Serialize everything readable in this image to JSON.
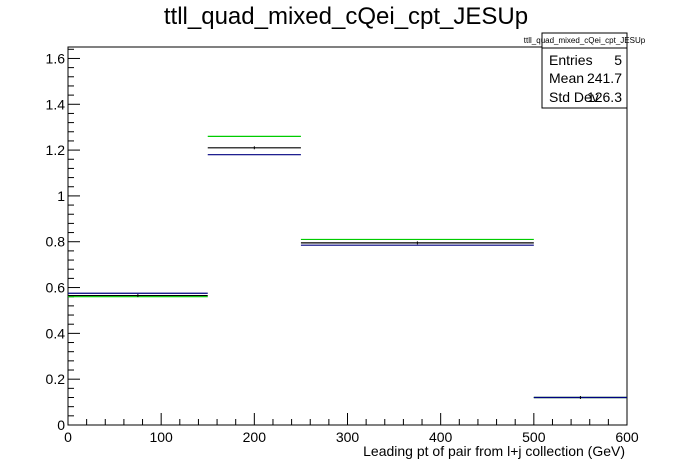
{
  "chart_data": {
    "type": "histogram",
    "title": "ttll_quad_mixed_cQei_cpt_JESUp",
    "xlabel": "Leading pt of pair from l+j collection (GeV)",
    "ylabel": "",
    "xlim": [
      0,
      600
    ],
    "ylim": [
      0,
      1.65
    ],
    "x_ticks": [
      "0",
      "100",
      "200",
      "300",
      "400",
      "500",
      "600"
    ],
    "y_ticks": [
      "0",
      "0.2",
      "0.4",
      "0.6",
      "0.8",
      "1",
      "1.2",
      "1.4",
      "1.6"
    ],
    "bin_edges": [
      0,
      150,
      250,
      500,
      600
    ],
    "series": [
      {
        "color": "#000000",
        "values": [
          0.565,
          1.21,
          0.795,
          0.12
        ]
      },
      {
        "color": "#00cc00",
        "values": [
          0.56,
          1.26,
          0.81,
          0.12
        ]
      },
      {
        "color": "#000080",
        "values": [
          0.575,
          1.18,
          0.785,
          0.12
        ]
      }
    ],
    "stats_box": {
      "title": "ttll_quad_mixed_cQei_cpt_JESUp",
      "rows": [
        {
          "label": "Entries",
          "value": "5"
        },
        {
          "label": "Mean",
          "value": "241.7"
        },
        {
          "label": "Std Dev",
          "value": "126.3"
        }
      ]
    },
    "grid": false,
    "legend": "none"
  }
}
